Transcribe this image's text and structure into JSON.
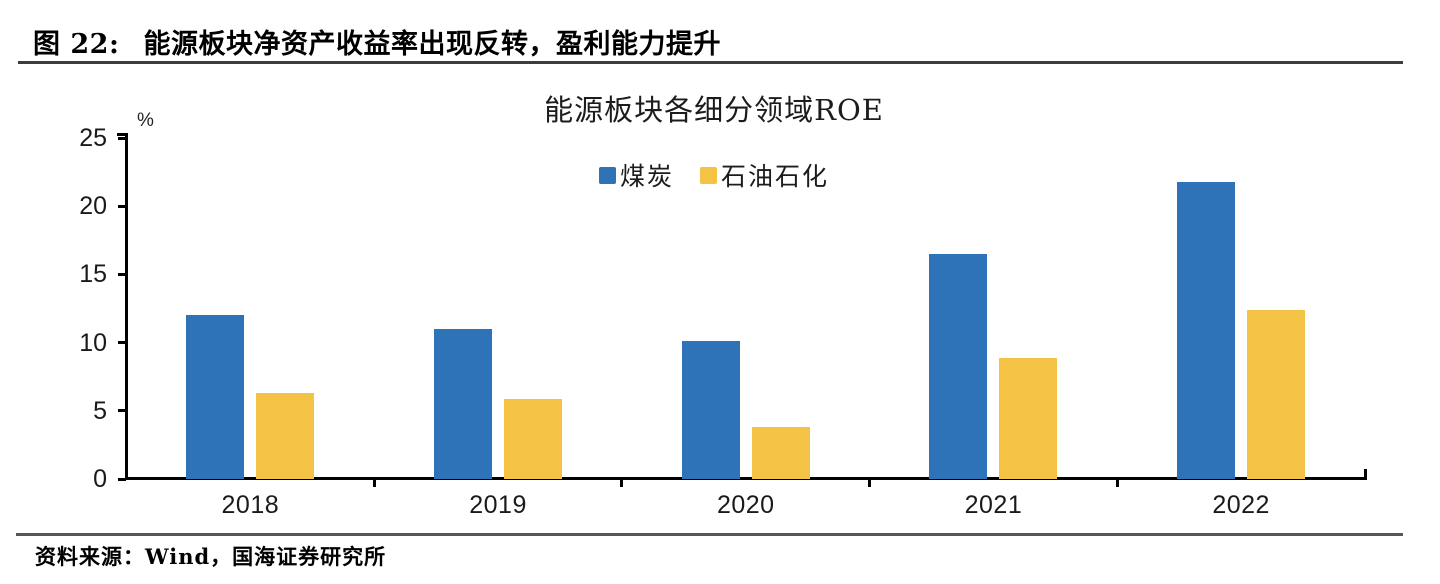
{
  "header": {
    "figure_label": "图 22:",
    "title": "能源板块净资产收益率出现反转，盈利能力提升"
  },
  "chart_data": {
    "type": "bar",
    "title": "能源板块各细分领域ROE",
    "ylabel": "%",
    "xlabel": "",
    "categories": [
      "2018",
      "2019",
      "2020",
      "2021",
      "2022"
    ],
    "series": [
      {
        "key": "coal",
        "name": "煤炭",
        "color": "#2e72b8",
        "values": [
          12.0,
          11.0,
          10.1,
          16.5,
          21.8
        ]
      },
      {
        "key": "oil-petrochemical",
        "name": "石油石化",
        "color": "#f4c244",
        "values": [
          6.3,
          5.9,
          3.8,
          8.9,
          12.4
        ]
      }
    ],
    "ylim": [
      0,
      25
    ],
    "yticks": [
      0,
      5,
      10,
      15,
      20,
      25
    ],
    "legend_position": "top-center",
    "grid": false
  },
  "footer": {
    "source_text": "资料来源：Wind，国海证券研究所"
  }
}
